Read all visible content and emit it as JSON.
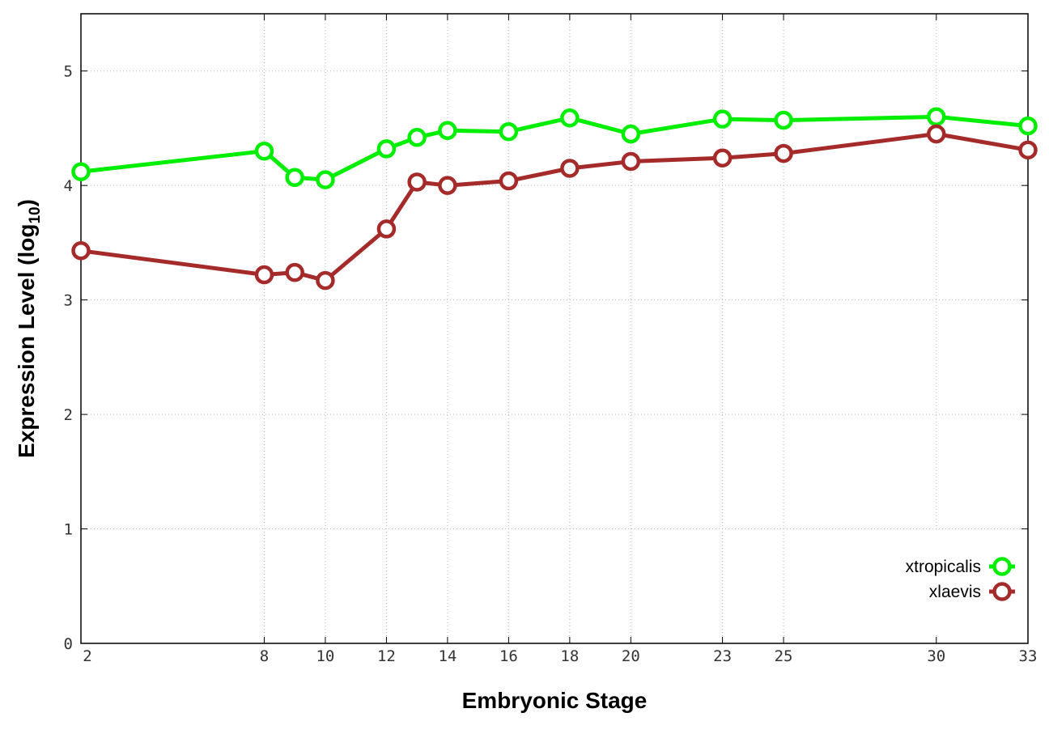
{
  "chart_data": {
    "type": "line",
    "title": "",
    "xlabel": "Embryonic Stage",
    "ylabel": "Expression Level (log",
    "ylabel_sub": "10",
    "ylabel_close": ")",
    "xlim": [
      2,
      33
    ],
    "ylim": [
      0,
      5.5
    ],
    "x_ticks": [
      2,
      8,
      10,
      12,
      14,
      16,
      18,
      20,
      23,
      25,
      30,
      33
    ],
    "x_tick_labels": [
      "2",
      "8",
      "10",
      "12",
      "14",
      "16",
      "18",
      "20",
      "23",
      "25",
      "30",
      "33"
    ],
    "y_ticks": [
      0,
      1,
      2,
      3,
      4,
      5
    ],
    "y_tick_labels": [
      "0",
      "1",
      "2",
      "3",
      "4",
      "5"
    ],
    "grid": true,
    "legend_position": "bottom-right",
    "series": [
      {
        "name": "xtropicalis",
        "color": "#00ee00",
        "marker": "circle-open",
        "x": [
          2,
          8,
          9,
          10,
          12,
          13,
          14,
          16,
          18,
          20,
          23,
          25,
          30,
          33
        ],
        "y": [
          4.12,
          4.3,
          4.07,
          4.05,
          4.32,
          4.42,
          4.48,
          4.47,
          4.59,
          4.45,
          4.58,
          4.57,
          4.6,
          4.52
        ]
      },
      {
        "name": "xlaevis",
        "color": "#a52a2a",
        "marker": "circle-open",
        "x": [
          2,
          8,
          9,
          10,
          12,
          13,
          14,
          16,
          18,
          20,
          23,
          25,
          30,
          33
        ],
        "y": [
          3.43,
          3.22,
          3.24,
          3.17,
          3.62,
          4.03,
          4.0,
          4.04,
          4.15,
          4.21,
          4.24,
          4.28,
          4.45,
          4.31
        ]
      }
    ]
  }
}
